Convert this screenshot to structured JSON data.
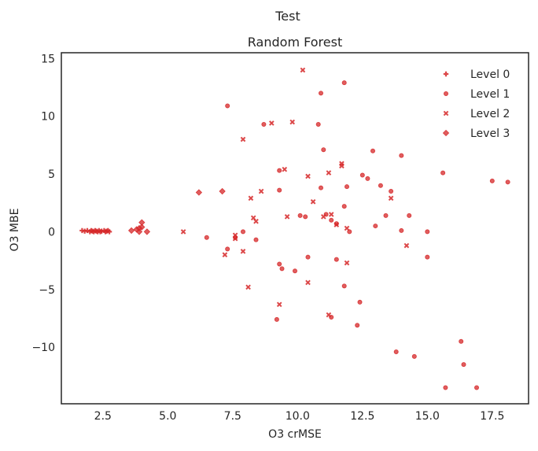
{
  "chart_data": {
    "type": "scatter",
    "suptitle": "Test",
    "title": "Random Forest",
    "xlabel": "O3 crMSE",
    "ylabel": "O3 MBE",
    "xlim": [
      0.9,
      18.9
    ],
    "ylim": [
      -14.9,
      15.5
    ],
    "xticks": [
      2.5,
      5.0,
      7.5,
      10.0,
      12.5,
      15.0,
      17.5
    ],
    "xtick_labels": [
      "2.5",
      "5.0",
      "7.5",
      "10.0",
      "12.5",
      "15.0",
      "17.5"
    ],
    "yticks": [
      -10,
      -5,
      0,
      5,
      10,
      15
    ],
    "ytick_labels": [
      "−10",
      "−5",
      "0",
      "5",
      "10",
      "15"
    ],
    "grid": false,
    "legend_position": "top-right",
    "color": "#d62728",
    "series": [
      {
        "name": "Level 0",
        "marker": "plus",
        "points": [
          [
            1.7,
            0.1
          ],
          [
            1.8,
            0.05
          ],
          [
            1.9,
            0.1
          ],
          [
            2.0,
            0.0
          ],
          [
            2.05,
            0.1
          ],
          [
            2.1,
            0.05
          ],
          [
            2.15,
            0.0
          ],
          [
            2.2,
            0.1
          ],
          [
            2.25,
            0.05
          ],
          [
            2.3,
            0.0
          ],
          [
            2.35,
            0.1
          ],
          [
            2.4,
            0.0
          ],
          [
            2.45,
            0.05
          ],
          [
            2.55,
            0.1
          ],
          [
            2.6,
            0.0
          ],
          [
            2.65,
            0.05
          ],
          [
            2.7,
            0.1
          ],
          [
            2.75,
            0.0
          ]
        ]
      },
      {
        "name": "Level 1",
        "marker": "circle",
        "points": [
          [
            14.0,
            0.1
          ],
          [
            10.9,
            12.0
          ],
          [
            11.8,
            12.9
          ],
          [
            7.3,
            10.9
          ],
          [
            8.7,
            9.3
          ],
          [
            10.8,
            9.3
          ],
          [
            11.0,
            7.1
          ],
          [
            12.9,
            7.0
          ],
          [
            14.0,
            6.6
          ],
          [
            15.6,
            5.1
          ],
          [
            17.5,
            4.4
          ],
          [
            18.1,
            4.3
          ],
          [
            9.3,
            5.3
          ],
          [
            9.3,
            3.6
          ],
          [
            10.1,
            1.4
          ],
          [
            10.3,
            1.3
          ],
          [
            10.9,
            3.8
          ],
          [
            11.1,
            1.5
          ],
          [
            11.9,
            3.9
          ],
          [
            11.8,
            2.2
          ],
          [
            12.7,
            4.6
          ],
          [
            12.5,
            4.9
          ],
          [
            13.2,
            4.0
          ],
          [
            13.4,
            1.4
          ],
          [
            13.6,
            3.5
          ],
          [
            14.3,
            1.4
          ],
          [
            13.0,
            0.5
          ],
          [
            12.0,
            0.0
          ],
          [
            11.5,
            0.7
          ],
          [
            11.3,
            1.0
          ],
          [
            15.0,
            0.0
          ],
          [
            15.0,
            -2.2
          ],
          [
            10.4,
            -2.2
          ],
          [
            11.5,
            -2.4
          ],
          [
            9.3,
            -2.8
          ],
          [
            9.4,
            -3.2
          ],
          [
            9.9,
            -3.4
          ],
          [
            11.8,
            -4.7
          ],
          [
            12.4,
            -6.1
          ],
          [
            12.3,
            -8.1
          ],
          [
            9.2,
            -7.6
          ],
          [
            11.3,
            -7.4
          ],
          [
            13.8,
            -10.4
          ],
          [
            14.5,
            -10.8
          ],
          [
            16.3,
            -9.5
          ],
          [
            16.4,
            -11.5
          ],
          [
            15.7,
            -13.5
          ],
          [
            16.9,
            -13.5
          ],
          [
            6.5,
            -0.5
          ],
          [
            7.6,
            -0.5
          ],
          [
            7.9,
            0.0
          ],
          [
            8.4,
            -0.7
          ],
          [
            7.3,
            -1.5
          ]
        ]
      },
      {
        "name": "Level 2",
        "marker": "x",
        "points": [
          [
            10.2,
            14.0
          ],
          [
            9.0,
            9.4
          ],
          [
            9.8,
            9.5
          ],
          [
            7.9,
            8.0
          ],
          [
            9.5,
            5.4
          ],
          [
            11.2,
            5.1
          ],
          [
            11.7,
            5.7
          ],
          [
            11.7,
            5.9
          ],
          [
            10.4,
            4.8
          ],
          [
            8.6,
            3.5
          ],
          [
            8.2,
            2.9
          ],
          [
            10.6,
            2.6
          ],
          [
            11.0,
            1.3
          ],
          [
            11.3,
            1.5
          ],
          [
            11.5,
            0.6
          ],
          [
            13.6,
            2.9
          ],
          [
            8.3,
            1.2
          ],
          [
            8.4,
            0.9
          ],
          [
            9.6,
            1.3
          ],
          [
            11.9,
            0.3
          ],
          [
            5.6,
            0.0
          ],
          [
            7.6,
            -0.3
          ],
          [
            7.6,
            -0.6
          ],
          [
            7.9,
            -1.7
          ],
          [
            7.2,
            -2.0
          ],
          [
            11.9,
            -2.7
          ],
          [
            14.2,
            -1.2
          ],
          [
            8.1,
            -4.8
          ],
          [
            10.4,
            -4.4
          ],
          [
            9.3,
            -6.3
          ],
          [
            11.2,
            -7.2
          ]
        ]
      },
      {
        "name": "Level 3",
        "marker": "diamond",
        "points": [
          [
            3.6,
            0.1
          ],
          [
            3.9,
            0.3
          ],
          [
            3.9,
            0.0
          ],
          [
            4.0,
            0.4
          ],
          [
            4.0,
            0.8
          ],
          [
            4.2,
            0.0
          ],
          [
            3.8,
            0.2
          ],
          [
            6.2,
            3.4
          ],
          [
            7.1,
            3.5
          ]
        ]
      }
    ]
  }
}
